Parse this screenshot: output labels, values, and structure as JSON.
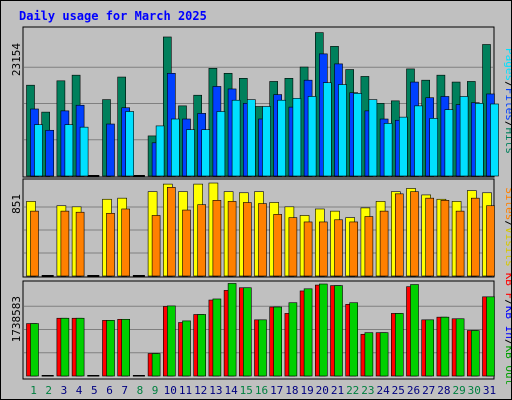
{
  "chart_data": {
    "type": "bar",
    "title": "Daily usage for March 2025",
    "title_color": "#0000ff",
    "categories": [
      "1",
      "2",
      "3",
      "4",
      "5",
      "6",
      "7",
      "8",
      "9",
      "10",
      "11",
      "12",
      "13",
      "14",
      "15",
      "16",
      "17",
      "18",
      "19",
      "20",
      "21",
      "22",
      "23",
      "24",
      "25",
      "26",
      "27",
      "28",
      "29",
      "30",
      "31"
    ],
    "weekend_days": [
      "1",
      "2",
      "8",
      "9",
      "15",
      "16",
      "22",
      "23",
      "29",
      "30"
    ],
    "grid": true,
    "legend_placement": "right",
    "panels": [
      {
        "id": "hits",
        "ymax_label": "23154",
        "ylim": [
          0,
          23154
        ],
        "series": [
          {
            "name": "Hits",
            "color": "#00805c",
            "values": [
              14500,
              10200,
              15200,
              16100,
              0,
              12200,
              15800,
              0,
              6400,
              22200,
              11200,
              12900,
              17200,
              16400,
              15600,
              11100,
              15100,
              15600,
              17400,
              22900,
              20700,
              17000,
              15900,
              11600,
              12000,
              17100,
              15300,
              16100,
              15000,
              15100,
              21000
            ]
          },
          {
            "name": "Files",
            "color": "#0040ff",
            "values": [
              10700,
              7300,
              10400,
              11300,
              0,
              8300,
              10900,
              0,
              5300,
              16400,
              9100,
              10000,
              14300,
              13900,
              11600,
              9100,
              13000,
              11000,
              15300,
              19500,
              17900,
              13300,
              10400,
              9100,
              8900,
              15000,
              12500,
              12700,
              11400,
              11700,
              13100
            ]
          },
          {
            "name": "Pages",
            "color": "#00e0ff",
            "values": [
              8200,
              0,
              8200,
              7800,
              0,
              0,
              10300,
              0,
              8000,
              9100,
              7400,
              7400,
              10300,
              12100,
              12200,
              11100,
              12100,
              12400,
              12700,
              14900,
              14600,
              13200,
              12200,
              8400,
              9400,
              11200,
              9200,
              10600,
              12700,
              11600,
              11500
            ]
          }
        ]
      },
      {
        "id": "visits",
        "ymax_label": "851",
        "ylim": [
          0,
          851
        ],
        "series": [
          {
            "name": "Visits",
            "color": "#ffff00",
            "values": [
              690,
              0,
              650,
              640,
              0,
              710,
              720,
              0,
              780,
              850,
              780,
              850,
              860,
              780,
              770,
              780,
              680,
              640,
              560,
              620,
              600,
              540,
              630,
              690,
              780,
              810,
              750,
              710,
              690,
              790,
              770
            ]
          },
          {
            "name": "Sites",
            "color": "#ff8000",
            "values": [
              600,
              0,
              600,
              590,
              0,
              580,
              620,
              0,
              560,
              820,
              610,
              660,
              700,
              690,
              680,
              670,
              570,
              540,
              500,
              500,
              520,
              500,
              550,
              600,
              760,
              780,
              720,
              700,
              600,
              720,
              650
            ]
          }
        ]
      },
      {
        "id": "kbytes",
        "ymax_label": "1738583",
        "ylim": [
          0,
          1738583
        ],
        "series": [
          {
            "name": "KB F",
            "color": "#ff0000",
            "values": [
              980000,
              0,
              1080000,
              1080000,
              0,
              1040000,
              1060000,
              0,
              420000,
              1300000,
              1000000,
              1150000,
              1420000,
              1600000,
              1650000,
              1050000,
              1290000,
              1170000,
              1590000,
              1700000,
              1690000,
              1340000,
              780000,
              810000,
              1170000,
              1670000,
              1050000,
              1100000,
              1070000,
              850000,
              1480000
            ]
          },
          {
            "name": "KB In",
            "color": "#0000ff",
            "values": []
          },
          {
            "name": "KB Out",
            "color": "#00d000",
            "values": [
              980000,
              0,
              1080000,
              1080000,
              0,
              1040000,
              1060000,
              0,
              420000,
              1310000,
              1030000,
              1150000,
              1440000,
              1730000,
              1650000,
              1050000,
              1290000,
              1370000,
              1630000,
              1720000,
              1690000,
              1370000,
              810000,
              810000,
              1170000,
              1710000,
              1050000,
              1100000,
              1070000,
              850000,
              1480000
            ]
          }
        ]
      }
    ],
    "legend": [
      {
        "panel": "hits",
        "parts": [
          {
            "text": "Pages",
            "color": "#00e0ff"
          },
          {
            "text": "/",
            "color": "#000000"
          },
          {
            "text": "Files",
            "color": "#0040ff"
          },
          {
            "text": "/",
            "color": "#000000"
          },
          {
            "text": "Hits",
            "color": "#00805c"
          }
        ]
      },
      {
        "panel": "visits",
        "parts": [
          {
            "text": "Sites",
            "color": "#ff8000"
          },
          {
            "text": "/",
            "color": "#000000"
          },
          {
            "text": "Visits",
            "color": "#d6c800"
          }
        ]
      },
      {
        "panel": "kbytes",
        "parts": [
          {
            "text": "KB F",
            "color": "#ff0000"
          },
          {
            "text": "/",
            "color": "#000000"
          },
          {
            "text": "KB In",
            "color": "#0000ff"
          },
          {
            "text": "/",
            "color": "#000000"
          },
          {
            "text": "KB Out",
            "color": "#00a000"
          }
        ]
      }
    ]
  }
}
